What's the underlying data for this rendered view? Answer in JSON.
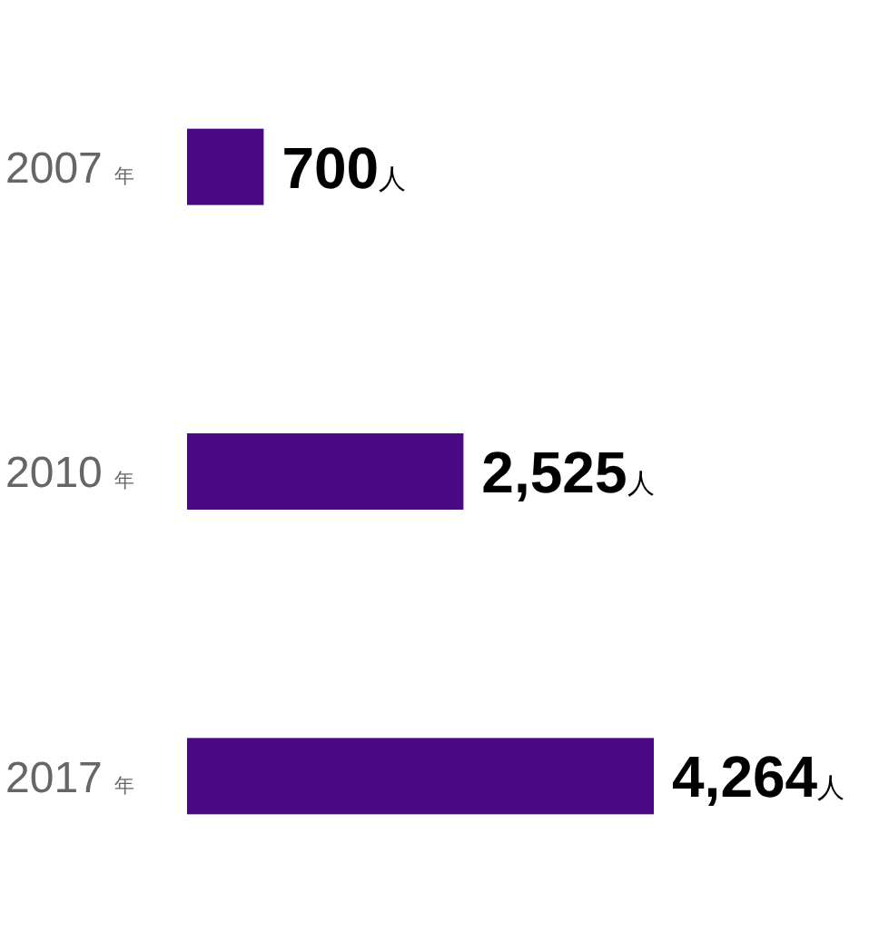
{
  "chart_data": {
    "type": "bar",
    "orientation": "horizontal",
    "categories": [
      "2007 年",
      "2010 年",
      "2017 年"
    ],
    "values": [
      700,
      2525,
      4264
    ],
    "color": "#4b0883",
    "value_labels": [
      "700人",
      "2,525人",
      "4,264人"
    ]
  }
}
